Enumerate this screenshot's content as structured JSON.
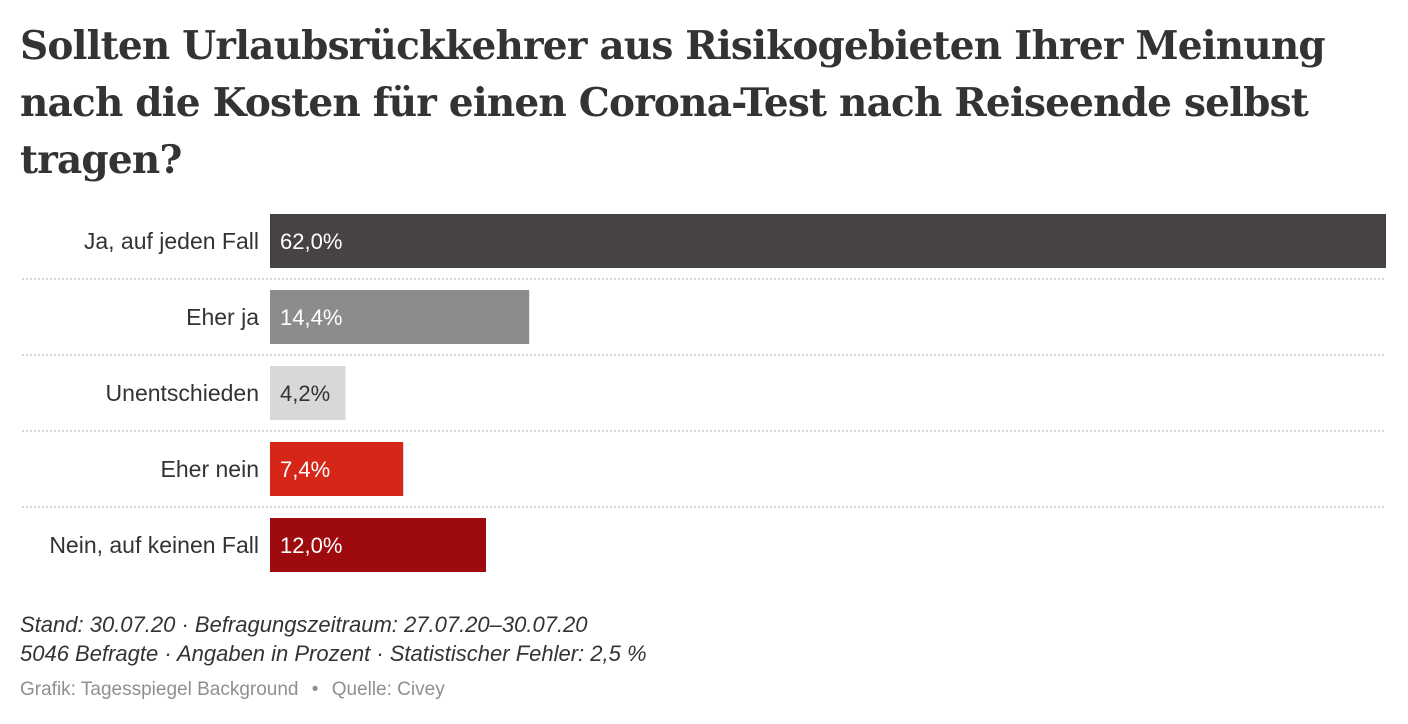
{
  "title": "Sollten Urlaubsrückkehrer aus Risikogebieten Ihrer Meinung nach die Kosten für einen Corona-Test nach Reiseende selbst tragen?",
  "chart_data": {
    "type": "bar",
    "orientation": "horizontal",
    "categories": [
      "Ja, auf jeden Fall",
      "Eher ja",
      "Unentschieden",
      "Eher nein",
      "Nein, auf keinen Fall"
    ],
    "values": [
      62.0,
      14.4,
      4.2,
      7.4,
      12.0
    ],
    "value_labels": [
      "62,0%",
      "14,4%",
      "4,2%",
      "7,4%",
      "12,0%"
    ],
    "colors": [
      "#474244",
      "#8e8c8a",
      "#d8d8d8",
      "#d62618",
      "#9e0b0f"
    ],
    "xlim": [
      0,
      62
    ],
    "grid": false
  },
  "notes": {
    "line1": "Stand: 30.07.20 · Befragungszeitraum: 27.07.20–30.07.20",
    "line2": "5046 Befragte · Angaben in Prozent · Statistischer Fehler: 2,5 %"
  },
  "footer": {
    "credit": "Grafik: Tagesspiegel Background",
    "bullet": "•",
    "source": "Quelle: Civey"
  }
}
